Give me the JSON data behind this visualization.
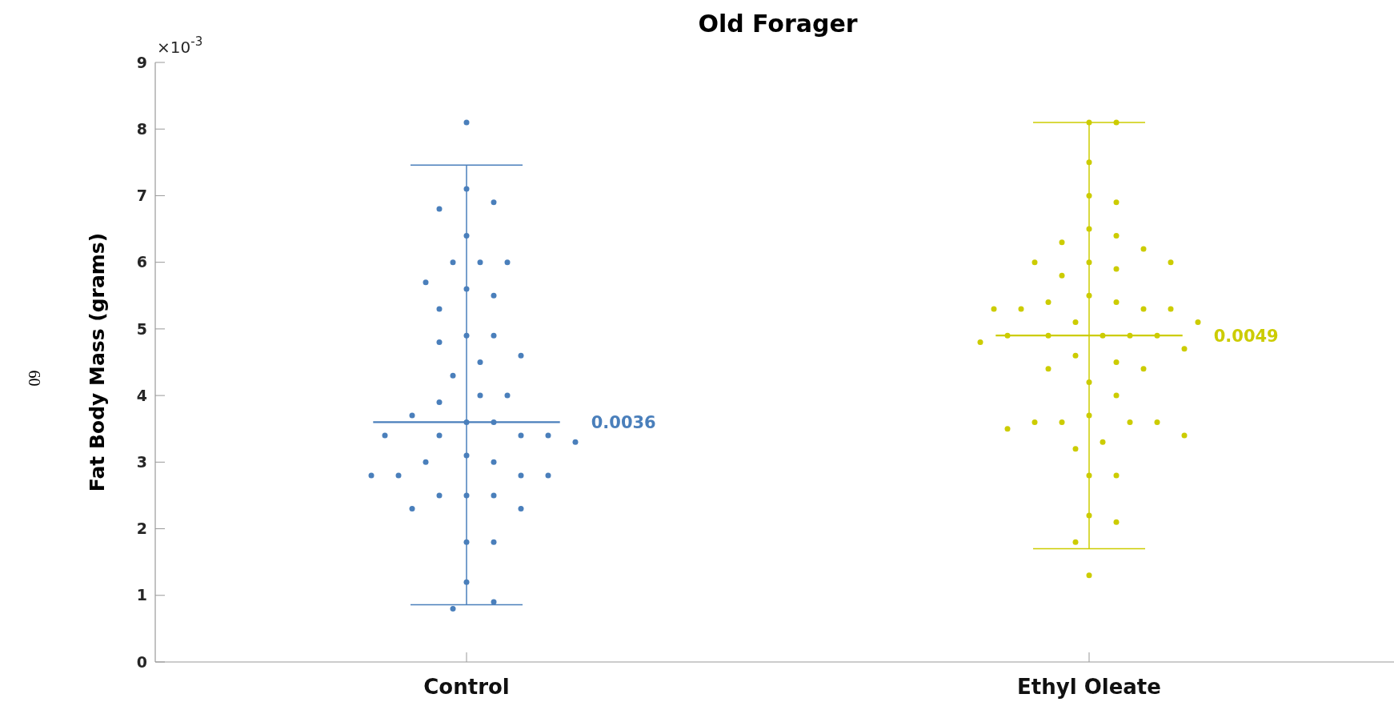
{
  "chart_data": {
    "type": "scatter",
    "title": "Old Forager",
    "ylabel": "Fat Body Mass (grams)",
    "annotations": [
      "×10$^{-3}$",
      "60",
      "0.0036",
      "0.0049"
    ],
    "categories": [
      "Control",
      "Ethyl Oleate"
    ],
    "ylim": [
      0,
      9
    ],
    "yticks": [
      0,
      1,
      2,
      3,
      4,
      5,
      6,
      7,
      8,
      9
    ],
    "grid": false,
    "marker": "circle",
    "series": [
      {
        "color": "#4a7fbb",
        "x": [
          "Control",
          "Control",
          "Control",
          "Control",
          "Control",
          "Control",
          "Control",
          "Control",
          "Control",
          "Control",
          "Control",
          "Control",
          "Control",
          "Control",
          "Control",
          "Control",
          "Control",
          "Control",
          "Control",
          "Control",
          "Control",
          "Control",
          "Control",
          "Control",
          "Control",
          "Control",
          "Control",
          "Control",
          "Control",
          "Control",
          "Control",
          "Control",
          "Control",
          "Control",
          "Control",
          "Control",
          "Control",
          "Control",
          "Control",
          "Control",
          "Control",
          "Control",
          "Control",
          "Control",
          "Control",
          "Control"
        ],
        "values": [
          8.1,
          7.1,
          6.9,
          6.8,
          6.4,
          6.0,
          6.0,
          6.0,
          5.7,
          5.6,
          5.5,
          5.3,
          4.9,
          4.9,
          4.8,
          4.6,
          4.5,
          4.3,
          4.0,
          4.0,
          3.9,
          3.7,
          3.6,
          3.6,
          3.4,
          3.4,
          3.4,
          3.4,
          3.3,
          3.1,
          3.0,
          3.0,
          2.8,
          2.8,
          2.8,
          2.8,
          2.5,
          2.5,
          2.5,
          2.3,
          2.3,
          1.8,
          1.8,
          1.2,
          0.9,
          0.8
        ]
      },
      {
        "color": "#cccc00",
        "x": [
          "Ethyl Oleate",
          "Ethyl Oleate",
          "Ethyl Oleate",
          "Ethyl Oleate",
          "Ethyl Oleate",
          "Ethyl Oleate",
          "Ethyl Oleate",
          "Ethyl Oleate",
          "Ethyl Oleate",
          "Ethyl Oleate",
          "Ethyl Oleate",
          "Ethyl Oleate",
          "Ethyl Oleate",
          "Ethyl Oleate",
          "Ethyl Oleate",
          "Ethyl Oleate",
          "Ethyl Oleate",
          "Ethyl Oleate",
          "Ethyl Oleate",
          "Ethyl Oleate",
          "Ethyl Oleate",
          "Ethyl Oleate",
          "Ethyl Oleate",
          "Ethyl Oleate",
          "Ethyl Oleate",
          "Ethyl Oleate",
          "Ethyl Oleate",
          "Ethyl Oleate",
          "Ethyl Oleate",
          "Ethyl Oleate",
          "Ethyl Oleate",
          "Ethyl Oleate",
          "Ethyl Oleate",
          "Ethyl Oleate",
          "Ethyl Oleate",
          "Ethyl Oleate",
          "Ethyl Oleate",
          "Ethyl Oleate",
          "Ethyl Oleate",
          "Ethyl Oleate",
          "Ethyl Oleate",
          "Ethyl Oleate",
          "Ethyl Oleate",
          "Ethyl Oleate",
          "Ethyl Oleate",
          "Ethyl Oleate",
          "Ethyl Oleate",
          "Ethyl Oleate",
          "Ethyl Oleate",
          "Ethyl Oleate",
          "Ethyl Oleate"
        ],
        "values": [
          8.1,
          8.1,
          7.5,
          7.0,
          6.9,
          6.5,
          6.4,
          6.3,
          6.2,
          6.0,
          6.0,
          6.0,
          5.9,
          5.8,
          5.5,
          5.4,
          5.4,
          5.3,
          5.3,
          5.3,
          5.3,
          5.1,
          5.1,
          4.9,
          4.9,
          4.9,
          4.9,
          4.9,
          4.8,
          4.7,
          4.6,
          4.4,
          4.4,
          4.5,
          4.2,
          4.0,
          3.6,
          3.6,
          3.6,
          3.6,
          3.7,
          3.5,
          3.4,
          3.3,
          3.2,
          2.8,
          2.8,
          2.2,
          2.1,
          1.8,
          1.3
        ]
      },
      {
        "type": "box",
        "colors": [
          "#4a7fbb",
          "#cccc00"
        ],
        "boxes": [
          {
            "low": 0.86,
            "q1": 3.6,
            "median": 3.6,
            "q3": 3.6,
            "high": 7.46
          },
          {
            "low": 1.7,
            "q1": 4.9,
            "median": 4.9,
            "q3": 4.9,
            "high": 8.1
          }
        ]
      }
    ]
  }
}
